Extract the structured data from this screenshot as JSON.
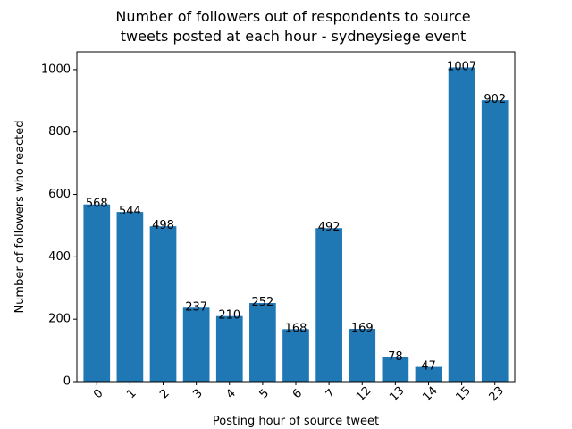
{
  "chart_data": {
    "type": "bar",
    "title_lines": [
      "Number of followers out of respondents to source",
      "tweets posted at each hour - sydneysiege event"
    ],
    "xlabel": "Posting hour of source tweet",
    "ylabel": "Number of followers who reacted",
    "categories": [
      "0",
      "1",
      "2",
      "3",
      "4",
      "5",
      "6",
      "7",
      "12",
      "13",
      "14",
      "15",
      "23"
    ],
    "values": [
      568,
      544,
      498,
      237,
      210,
      252,
      168,
      492,
      169,
      78,
      47,
      1007,
      902
    ],
    "ylim": [
      0,
      1057
    ],
    "yticks": [
      0,
      200,
      400,
      600,
      800,
      1000
    ],
    "bar_color": "#1f77b4",
    "grid": false,
    "legend": "none"
  }
}
